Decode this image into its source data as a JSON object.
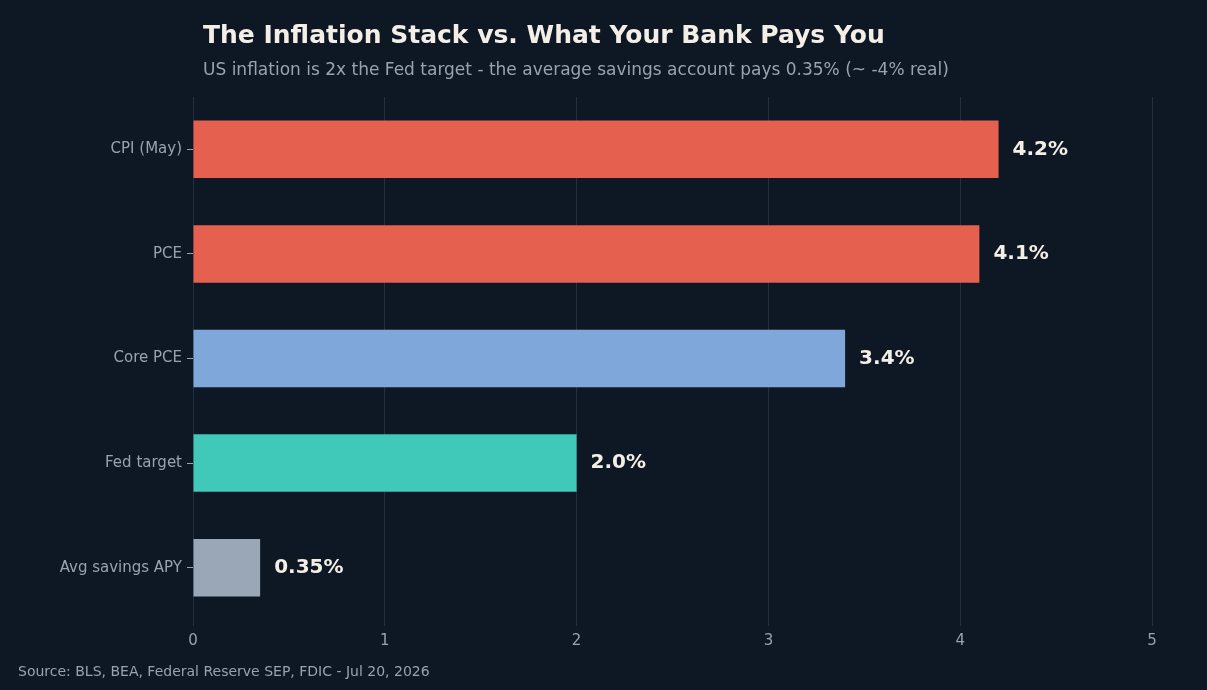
{
  "chart_data": {
    "type": "bar",
    "orientation": "horizontal",
    "title": "The Inflation Stack vs. What Your Bank Pays You",
    "subtitle": "US inflation is 2x the Fed target - the average savings account pays 0.35% (~ -4% real)",
    "categories": [
      "CPI (May)",
      "PCE",
      "Core PCE",
      "Fed target",
      "Avg savings APY"
    ],
    "values": [
      4.2,
      4.1,
      3.4,
      2.0,
      0.35
    ],
    "colors": [
      "#e5604f",
      "#e5604f",
      "#7fa7d9",
      "#40c8b9",
      "#9aa7b7"
    ],
    "value_labels": [
      "4.2%",
      "4.1%",
      "3.4%",
      "2.0%",
      "0.35%"
    ],
    "xlim": [
      0,
      5
    ],
    "xticks": [
      0,
      1,
      2,
      3,
      4,
      5
    ],
    "grid": "x",
    "annotations": [
      "Source: BLS, BEA, Federal Reserve SEP, FDIC - Jul 20, 2026"
    ]
  }
}
